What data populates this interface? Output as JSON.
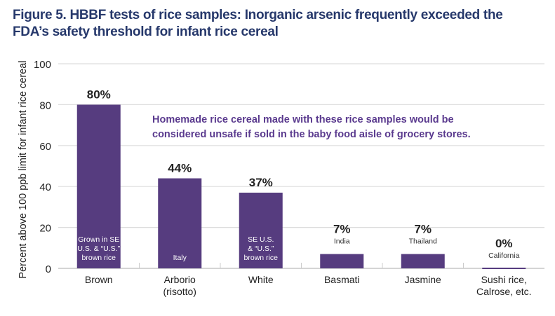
{
  "chart_data": {
    "type": "bar",
    "title": "Figure 5. HBBF tests of rice samples: Inorganic arsenic frequently exceeded the FDA’s safety threshold for infant rice cereal",
    "ylabel": "Percent above 100 ppb limit for infant rice cereal",
    "xlabel": "",
    "ylim": [
      0,
      100
    ],
    "yticks": [
      0,
      20,
      40,
      60,
      80,
      100
    ],
    "grid": true,
    "categories": [
      [
        "Brown"
      ],
      [
        "Arborio",
        "(risotto)"
      ],
      [
        "White"
      ],
      [
        "Basmati"
      ],
      [
        "Jasmine"
      ],
      [
        "Sushi rice,",
        "Calrose, etc."
      ]
    ],
    "values": [
      80,
      44,
      37,
      7,
      7,
      0
    ],
    "value_labels": [
      "80%",
      "44%",
      "37%",
      "7%",
      "7%",
      "0%"
    ],
    "origins": [
      [
        "Grown in SE",
        "U.S. & “U.S.”",
        "brown rice"
      ],
      [
        "Italy"
      ],
      [
        "SE U.S.",
        "& “U.S.”",
        "brown rice"
      ],
      [
        "India"
      ],
      [
        "Thailand"
      ],
      [
        "California"
      ]
    ],
    "annotation": [
      "Homemade rice cereal made with these rice samples would be",
      "considered unsafe if sold in the baby food aisle of grocery stores."
    ],
    "bar_color": "#563c7f",
    "annotation_color": "#5a3a8e"
  }
}
